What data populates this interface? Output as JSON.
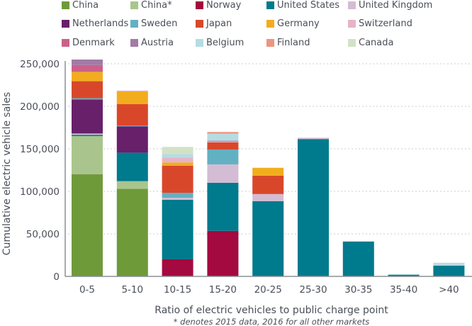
{
  "chart_data": {
    "type": "bar",
    "stacked": true,
    "title": "",
    "xlabel": "Ratio of electric vehicles to public charge point",
    "ylabel": "Cumulative electric vehicle sales",
    "footnote": "* denotes 2015 data, 2016 for all other markets",
    "ylim": [
      0,
      262500
    ],
    "yticks": [
      0,
      50000,
      100000,
      150000,
      200000,
      250000
    ],
    "ytick_labels": [
      "0",
      "50,000",
      "100,000",
      "150,000",
      "200,000",
      "250,000"
    ],
    "grid": true,
    "legend_position": "top",
    "categories": [
      "0-5",
      "5-10",
      "10-15",
      "15-20",
      "20-25",
      "25-30",
      "30-35",
      "35-40",
      ">40"
    ],
    "series": [
      {
        "name": "China",
        "color": "#6f9a3a",
        "values": [
          120000,
          103000,
          0,
          0,
          0,
          0,
          0,
          0,
          0
        ]
      },
      {
        "name": "China*",
        "color": "#a9c58d",
        "values": [
          45000,
          9000,
          0,
          0,
          0,
          0,
          0,
          0,
          0
        ]
      },
      {
        "name": "Norway",
        "color": "#a4093f",
        "values": [
          0,
          0,
          20000,
          53500,
          0,
          0,
          0,
          0,
          0
        ]
      },
      {
        "name": "United States",
        "color": "#007a8d",
        "values": [
          1500,
          33500,
          70000,
          56500,
          88500,
          161500,
          41000,
          2000,
          12500
        ]
      },
      {
        "name": "United Kingdom",
        "color": "#d3bcd4",
        "values": [
          1500,
          0,
          2500,
          21700,
          8300,
          1500,
          0,
          0,
          1000
        ]
      },
      {
        "name": "Netherlands",
        "color": "#68206b",
        "values": [
          40000,
          31000,
          0,
          0,
          0,
          0,
          0,
          0,
          0
        ]
      },
      {
        "name": "Sweden",
        "color": "#62b1c3",
        "values": [
          1500,
          1000,
          5800,
          17500,
          0,
          0,
          0,
          0,
          0
        ]
      },
      {
        "name": "Japan",
        "color": "#d9472b",
        "values": [
          20000,
          25000,
          31700,
          8300,
          21700,
          0,
          0,
          0,
          0
        ]
      },
      {
        "name": "Germany",
        "color": "#f2ad1e",
        "values": [
          11000,
          15000,
          4000,
          0,
          9200,
          0,
          0,
          0,
          0
        ]
      },
      {
        "name": "Switzerland",
        "color": "#e6b3c8",
        "values": [
          0,
          1000,
          5800,
          1000,
          0,
          0,
          0,
          0,
          0
        ]
      },
      {
        "name": "Denmark",
        "color": "#cb6189",
        "values": [
          8000,
          0,
          0,
          0,
          0,
          0,
          0,
          0,
          0
        ]
      },
      {
        "name": "Austria",
        "color": "#a27ba6",
        "values": [
          6500,
          0,
          0,
          1000,
          0,
          0,
          0,
          0,
          0
        ]
      },
      {
        "name": "Belgium",
        "color": "#b5dce3",
        "values": [
          0,
          0,
          4000,
          8300,
          0,
          0,
          0,
          0,
          2500
        ]
      },
      {
        "name": "Finland",
        "color": "#ec9580",
        "values": [
          0,
          0,
          0,
          2000,
          0,
          0,
          0,
          0,
          0
        ]
      },
      {
        "name": "Canada",
        "color": "#d3e2c6",
        "values": [
          0,
          0,
          8500,
          0,
          0,
          0,
          0,
          0,
          0
        ]
      }
    ]
  }
}
